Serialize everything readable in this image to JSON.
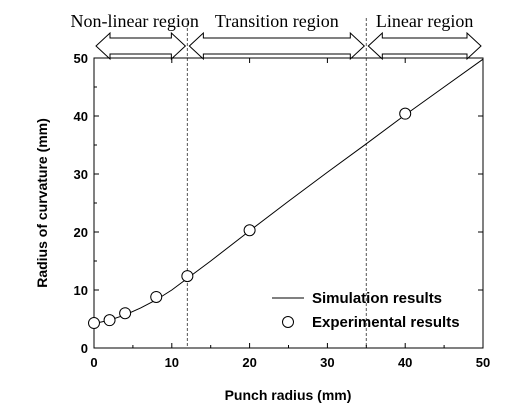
{
  "chart_data": {
    "type": "scatter",
    "title": "",
    "xlabel": "Punch radius (mm)",
    "ylabel": "Radius of curvature (mm)",
    "xlim": [
      0,
      50
    ],
    "ylim": [
      0,
      50
    ],
    "xticks": [
      0,
      10,
      20,
      30,
      40,
      50
    ],
    "yticks": [
      0,
      10,
      20,
      30,
      40,
      50
    ],
    "grid": false,
    "legend_position": "bottom-right",
    "series": [
      {
        "name": "Simulation results",
        "kind": "line",
        "x": [
          0,
          2,
          4,
          6,
          8,
          10,
          12,
          15,
          20,
          25,
          30,
          35,
          40,
          45,
          50
        ],
        "y": [
          4.2,
          4.8,
          5.7,
          6.9,
          8.3,
          10.0,
          12.0,
          15.0,
          20.2,
          25.3,
          30.3,
          35.2,
          40.2,
          45.0,
          49.8
        ]
      },
      {
        "name": "Experimental results",
        "kind": "scatter",
        "x": [
          0,
          2,
          4,
          8,
          12,
          20,
          40
        ],
        "y": [
          4.3,
          4.8,
          6.0,
          8.8,
          12.4,
          20.3,
          40.4
        ]
      }
    ],
    "regions": [
      {
        "label": "Non-linear region",
        "x_start": 0,
        "x_end": 12
      },
      {
        "label": "Transition region",
        "x_start": 12,
        "x_end": 35
      },
      {
        "label": "Linear region",
        "x_start": 35,
        "x_end": 50
      }
    ],
    "region_boundaries": [
      12,
      35
    ]
  }
}
